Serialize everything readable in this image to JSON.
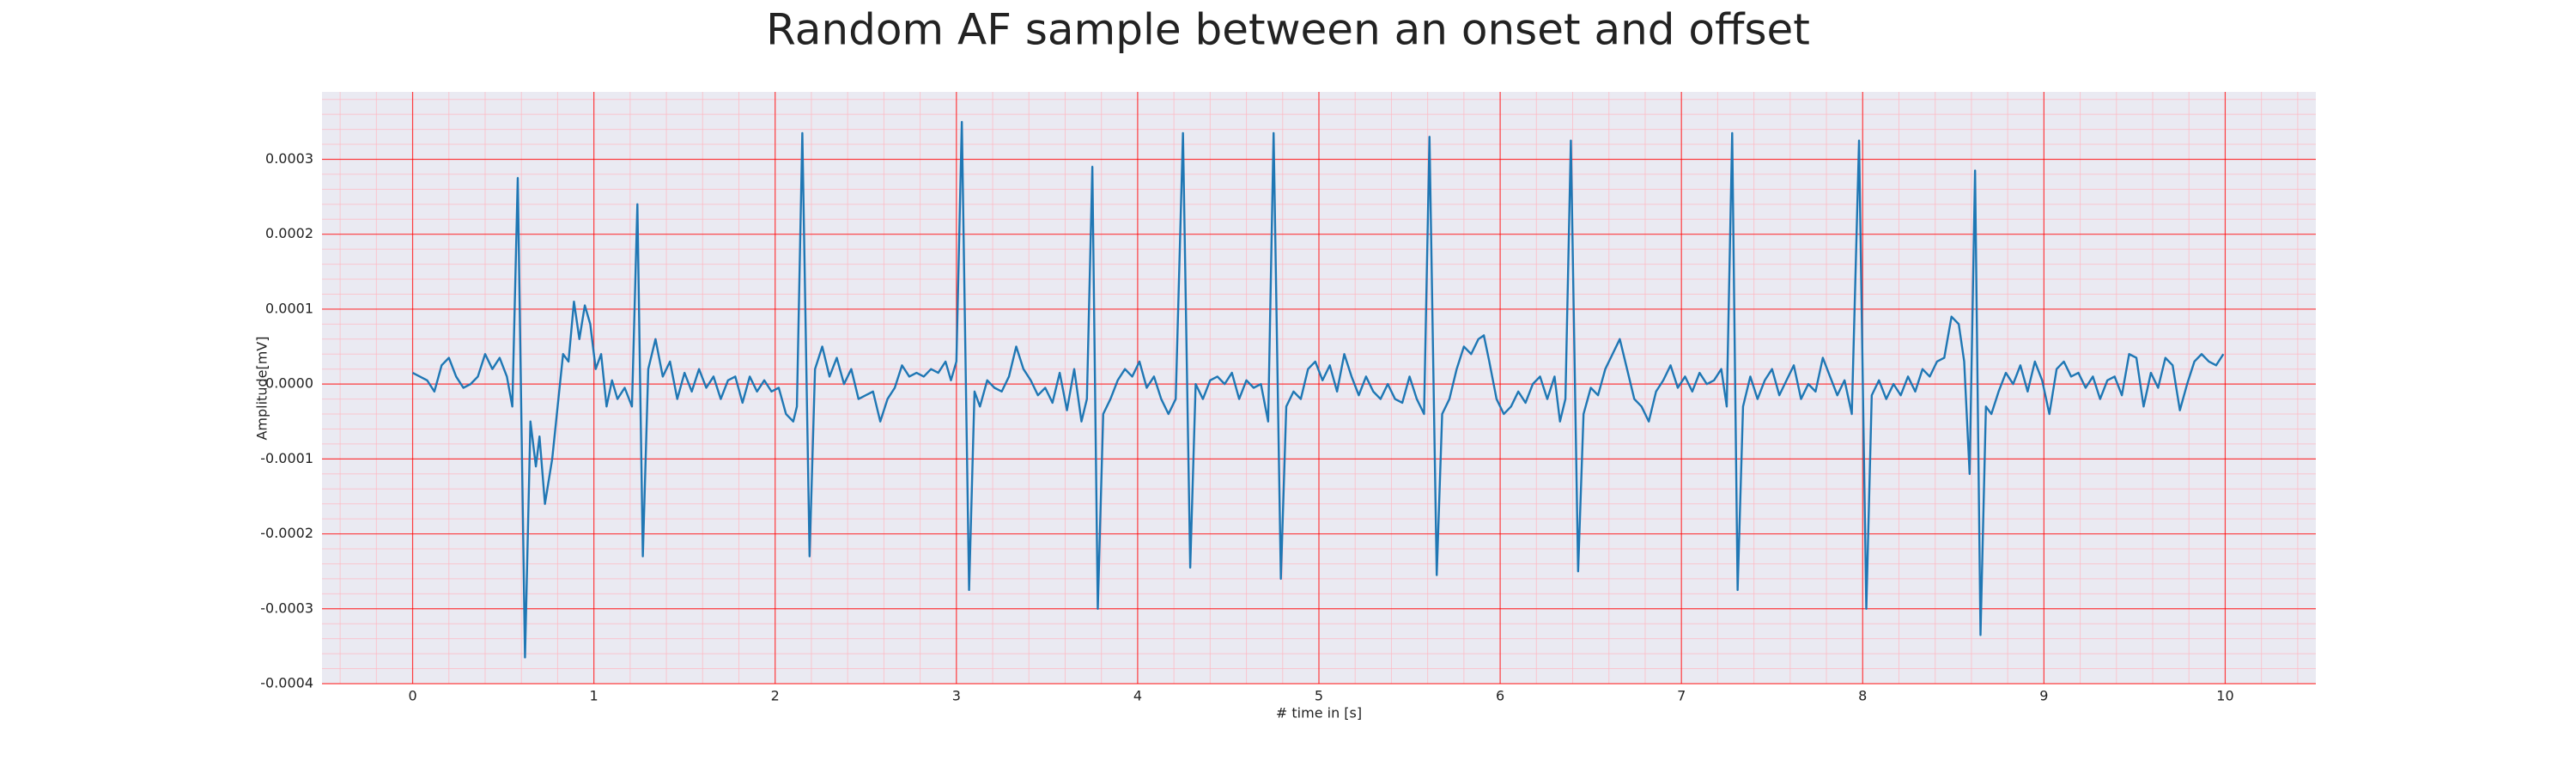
{
  "chart_data": {
    "type": "line",
    "title": "Random AF sample between an onset and offset",
    "xlabel": "# time in [s]",
    "ylabel": "Amplitude[mV]",
    "x": [
      0.0,
      0.04,
      0.08,
      0.12,
      0.16,
      0.2,
      0.24,
      0.28,
      0.32,
      0.36,
      0.4,
      0.44,
      0.48,
      0.52,
      0.55,
      0.58,
      0.62,
      0.65,
      0.68,
      0.7,
      0.73,
      0.77,
      0.8,
      0.83,
      0.86,
      0.89,
      0.92,
      0.95,
      0.98,
      1.01,
      1.04,
      1.07,
      1.1,
      1.13,
      1.17,
      1.21,
      1.24,
      1.27,
      1.3,
      1.34,
      1.38,
      1.42,
      1.46,
      1.5,
      1.54,
      1.58,
      1.62,
      1.66,
      1.7,
      1.74,
      1.78,
      1.82,
      1.86,
      1.9,
      1.94,
      1.98,
      2.02,
      2.06,
      2.1,
      2.12,
      2.15,
      2.19,
      2.22,
      2.26,
      2.3,
      2.34,
      2.38,
      2.42,
      2.46,
      2.5,
      2.54,
      2.58,
      2.62,
      2.66,
      2.7,
      2.74,
      2.78,
      2.82,
      2.86,
      2.9,
      2.94,
      2.97,
      3.0,
      3.03,
      3.07,
      3.1,
      3.13,
      3.17,
      3.21,
      3.25,
      3.29,
      3.33,
      3.37,
      3.41,
      3.45,
      3.49,
      3.53,
      3.57,
      3.61,
      3.65,
      3.69,
      3.72,
      3.75,
      3.78,
      3.81,
      3.85,
      3.89,
      3.93,
      3.97,
      4.01,
      4.05,
      4.09,
      4.13,
      4.17,
      4.21,
      4.25,
      4.29,
      4.32,
      4.36,
      4.4,
      4.44,
      4.48,
      4.52,
      4.56,
      4.6,
      4.64,
      4.68,
      4.72,
      4.75,
      4.79,
      4.82,
      4.86,
      4.9,
      4.94,
      4.98,
      5.02,
      5.06,
      5.1,
      5.14,
      5.18,
      5.22,
      5.26,
      5.3,
      5.34,
      5.38,
      5.42,
      5.46,
      5.5,
      5.54,
      5.58,
      5.61,
      5.65,
      5.68,
      5.72,
      5.76,
      5.8,
      5.84,
      5.88,
      5.91,
      5.94,
      5.98,
      6.02,
      6.06,
      6.1,
      6.14,
      6.18,
      6.22,
      6.26,
      6.3,
      6.33,
      6.36,
      6.39,
      6.43,
      6.46,
      6.5,
      6.54,
      6.58,
      6.62,
      6.66,
      6.7,
      6.74,
      6.78,
      6.82,
      6.86,
      6.9,
      6.94,
      6.98,
      7.02,
      7.06,
      7.1,
      7.14,
      7.18,
      7.22,
      7.25,
      7.28,
      7.31,
      7.34,
      7.38,
      7.42,
      7.46,
      7.5,
      7.54,
      7.58,
      7.62,
      7.66,
      7.7,
      7.74,
      7.78,
      7.82,
      7.86,
      7.9,
      7.94,
      7.98,
      8.02,
      8.05,
      8.09,
      8.13,
      8.17,
      8.21,
      8.25,
      8.29,
      8.33,
      8.37,
      8.41,
      8.45,
      8.49,
      8.53,
      8.56,
      8.59,
      8.62,
      8.65,
      8.68,
      8.71,
      8.75,
      8.79,
      8.83,
      8.87,
      8.91,
      8.95,
      8.99,
      9.03,
      9.07,
      9.11,
      9.15,
      9.19,
      9.23,
      9.27,
      9.31,
      9.35,
      9.39,
      9.43,
      9.47,
      9.51,
      9.55,
      9.59,
      9.63,
      9.67,
      9.71,
      9.75,
      9.79,
      9.83,
      9.87,
      9.91,
      9.95,
      9.99
    ],
    "series": [
      {
        "color": "#1f77b4",
        "values": [
          1.5e-05,
          1e-05,
          5e-06,
          -1e-05,
          2.5e-05,
          3.5e-05,
          1e-05,
          -5e-06,
          0,
          1e-05,
          4e-05,
          2e-05,
          3.5e-05,
          1e-05,
          -3e-05,
          0.000275,
          -0.000365,
          -5e-05,
          -0.00011,
          -7e-05,
          -0.00016,
          -0.0001,
          -3e-05,
          4e-05,
          3e-05,
          0.00011,
          6e-05,
          0.000105,
          8e-05,
          2e-05,
          4e-05,
          -3e-05,
          5e-06,
          -2e-05,
          -5e-06,
          -3e-05,
          0.00024,
          -0.00023,
          2e-05,
          6e-05,
          1e-05,
          3e-05,
          -2e-05,
          1.5e-05,
          -1e-05,
          2e-05,
          -5e-06,
          1e-05,
          -2e-05,
          5e-06,
          1e-05,
          -2.5e-05,
          1e-05,
          -1e-05,
          5e-06,
          -1e-05,
          -5e-06,
          -4e-05,
          -5e-05,
          -3e-05,
          0.000335,
          -0.00023,
          2e-05,
          5e-05,
          1e-05,
          3.5e-05,
          0,
          2e-05,
          -2e-05,
          -1.5e-05,
          -1e-05,
          -5e-05,
          -2e-05,
          -5e-06,
          2.5e-05,
          1e-05,
          1.5e-05,
          1e-05,
          2e-05,
          1.5e-05,
          3e-05,
          5e-06,
          3e-05,
          0.00035,
          -0.000275,
          -1e-05,
          -3e-05,
          5e-06,
          -5e-06,
          -1e-05,
          1e-05,
          5e-05,
          2e-05,
          5e-06,
          -1.5e-05,
          -5e-06,
          -2.5e-05,
          1.5e-05,
          -3.5e-05,
          2e-05,
          -5e-05,
          -2e-05,
          0.00029,
          -0.0003,
          -4e-05,
          -2e-05,
          5e-06,
          2e-05,
          1e-05,
          3e-05,
          -5e-06,
          1e-05,
          -2e-05,
          -4e-05,
          -2e-05,
          0.000335,
          -0.000245,
          0,
          -2e-05,
          5e-06,
          1e-05,
          0,
          1.5e-05,
          -2e-05,
          5e-06,
          -5e-06,
          0,
          -5e-05,
          0.000335,
          -0.00026,
          -3e-05,
          -1e-05,
          -2e-05,
          2e-05,
          3e-05,
          5e-06,
          2.5e-05,
          -1e-05,
          4e-05,
          1e-05,
          -1.5e-05,
          1e-05,
          -1e-05,
          -2e-05,
          0,
          -2e-05,
          -2.5e-05,
          1e-05,
          -2e-05,
          -4e-05,
          0.00033,
          -0.000255,
          -4e-05,
          -2e-05,
          2e-05,
          5e-05,
          4e-05,
          6e-05,
          6.5e-05,
          3e-05,
          -2e-05,
          -4e-05,
          -3e-05,
          -1e-05,
          -2.5e-05,
          0,
          1e-05,
          -2e-05,
          1e-05,
          -5e-05,
          -2e-05,
          0.000325,
          -0.00025,
          -4e-05,
          -5e-06,
          -1.5e-05,
          2e-05,
          4e-05,
          6e-05,
          2e-05,
          -2e-05,
          -3e-05,
          -5e-05,
          -1e-05,
          5e-06,
          2.5e-05,
          -5e-06,
          1e-05,
          -1e-05,
          1.5e-05,
          0,
          5e-06,
          2e-05,
          -3e-05,
          0.000335,
          -0.000275,
          -3e-05,
          1e-05,
          -2e-05,
          5e-06,
          2e-05,
          -1.5e-05,
          5e-06,
          2.5e-05,
          -2e-05,
          0,
          -1e-05,
          3.5e-05,
          1e-05,
          -1.5e-05,
          5e-06,
          -4e-05,
          0.000325,
          -0.0003,
          -1.5e-05,
          5e-06,
          -2e-05,
          0,
          -1.5e-05,
          1e-05,
          -1e-05,
          2e-05,
          1e-05,
          3e-05,
          3.5e-05,
          9e-05,
          8e-05,
          3e-05,
          -0.00012,
          0.000285,
          -0.000335,
          -3e-05,
          -4e-05,
          -1e-05,
          1.5e-05,
          0,
          2.5e-05,
          -1e-05,
          3e-05,
          5e-06,
          -4e-05,
          2e-05,
          3e-05,
          1e-05,
          1.5e-05,
          -5e-06,
          1e-05,
          -2e-05,
          5e-06,
          1e-05,
          -1.5e-05,
          4e-05,
          3.5e-05,
          -3e-05,
          1.5e-05,
          -5e-06,
          3.5e-05,
          2.5e-05,
          -3.5e-05,
          0,
          3e-05,
          4e-05,
          3e-05,
          2.5e-05,
          4e-05
        ]
      }
    ],
    "xlim": [
      -0.5,
      10.5
    ],
    "xticks": [
      0,
      1,
      2,
      3,
      4,
      5,
      6,
      7,
      8,
      9,
      10
    ],
    "ylim": [
      -0.0004,
      0.00039
    ],
    "yticks": [
      -0.0004,
      -0.0003,
      -0.0002,
      -0.0001,
      {
        "value": 0,
        "label": "0.0000"
      },
      0.0001,
      0.0002,
      0.0003
    ],
    "grid": true,
    "grid_color": "#ff0000",
    "minor_grid": true,
    "minor_grid_color": "#ffb6c1",
    "background": "#eaeaf2"
  }
}
